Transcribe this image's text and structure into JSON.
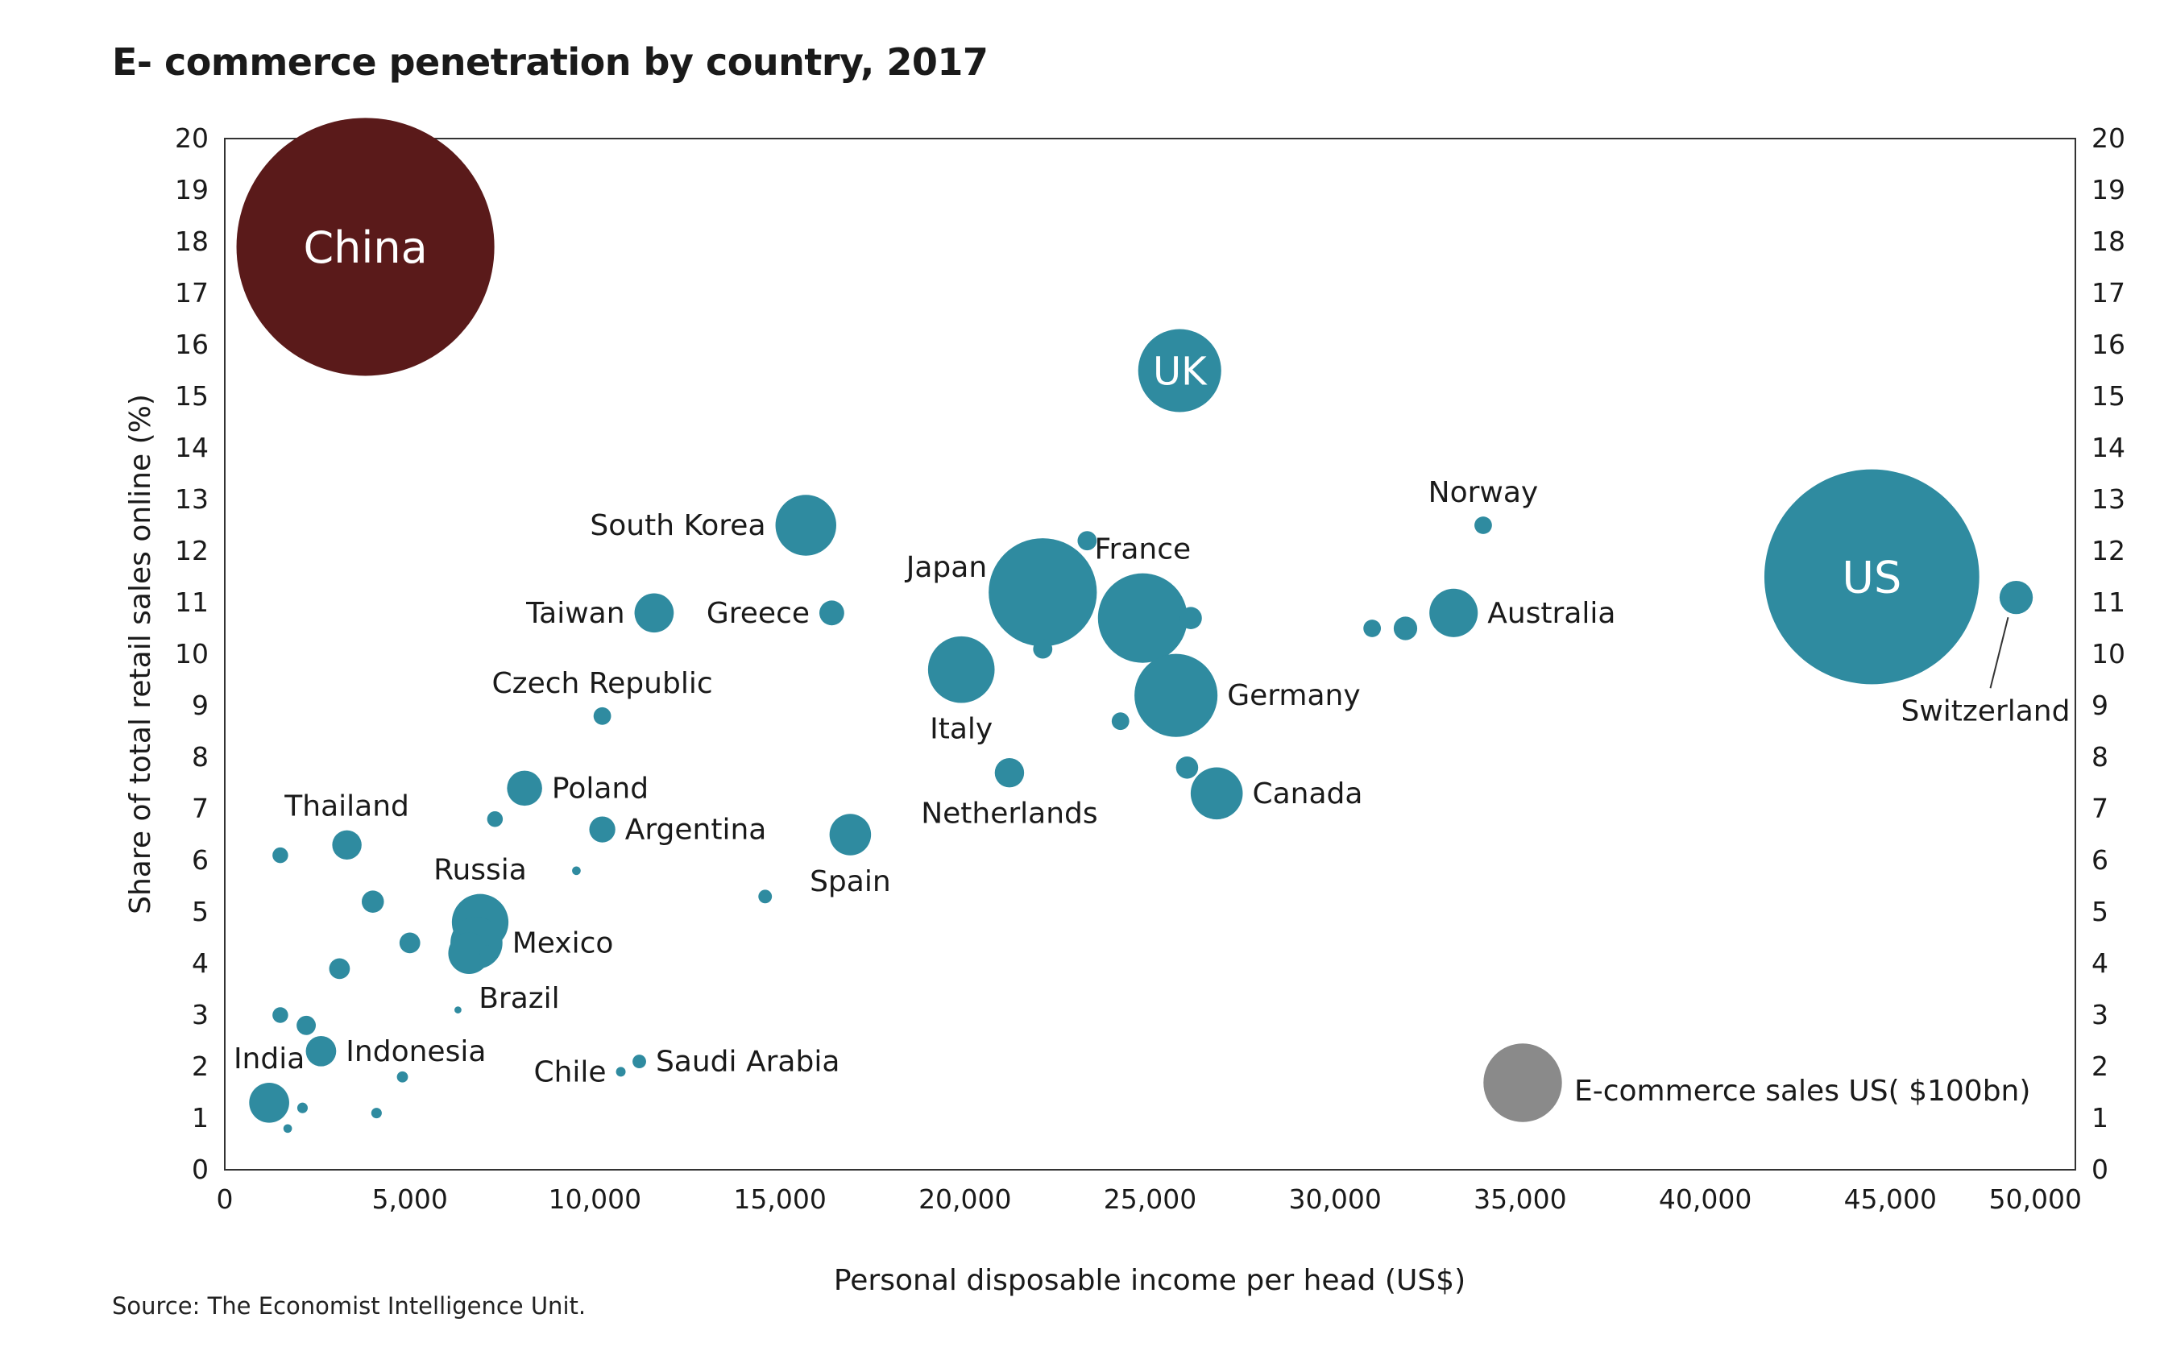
{
  "chart_data": {
    "type": "scatter",
    "subtype": "bubble",
    "title": "E- commerce penetration by country, 2017",
    "xlabel": "Personal disposable income per head (US$)",
    "ylabel": "Share of total retail sales online (%)",
    "xlim": [
      0,
      50000
    ],
    "ylim": [
      0,
      20
    ],
    "xticks": [
      0,
      5000,
      10000,
      15000,
      20000,
      25000,
      30000,
      35000,
      40000,
      45000,
      50000
    ],
    "xtick_labels": [
      "0",
      "5,000",
      "10,000",
      "15,000",
      "20,000",
      "25,000",
      "30,000",
      "35,000",
      "40,000",
      "45,000",
      "50,000"
    ],
    "yticks": [
      0,
      1,
      2,
      3,
      4,
      5,
      6,
      7,
      8,
      9,
      10,
      11,
      12,
      13,
      14,
      15,
      16,
      17,
      18,
      19,
      20
    ],
    "ytick_labels": [
      "0",
      "1",
      "2",
      "3",
      "4",
      "5",
      "6",
      "7",
      "8",
      "9",
      "10",
      "11",
      "12",
      "13",
      "14",
      "15",
      "16",
      "17",
      "18",
      "19",
      "20"
    ],
    "grid": false,
    "size_unit": "E-commerce sales, US$ bn",
    "colors": {
      "china": "#5a1a1a",
      "other": "#2f8ba0",
      "legend": "#8a8a8a",
      "axis": "#333333"
    },
    "legend": {
      "label": "E-commerce sales US( $100bn)",
      "size_value": 100,
      "position": "bottom-right"
    },
    "points": [
      {
        "name": "China",
        "x": 3800,
        "y": 17.9,
        "size": 1080,
        "label_inside": true,
        "highlight": true
      },
      {
        "name": "UK",
        "x": 25800,
        "y": 15.5,
        "size": 112,
        "label_inside": true
      },
      {
        "name": "US",
        "x": 44500,
        "y": 11.5,
        "size": 750,
        "label_inside": true
      },
      {
        "name": "South Korea",
        "x": 15700,
        "y": 12.5,
        "size": 60,
        "label": "South Korea",
        "label_pos": "left"
      },
      {
        "name": "Taiwan",
        "x": 11600,
        "y": 10.8,
        "size": 25,
        "label": "Taiwan",
        "label_pos": "left"
      },
      {
        "name": "Greece",
        "x": 16400,
        "y": 10.8,
        "size": 10,
        "label": "Greece",
        "label_pos": "left"
      },
      {
        "name": "Japan",
        "x": 22100,
        "y": 11.2,
        "size": 190,
        "label": "Japan",
        "label_pos": "upper-left"
      },
      {
        "name": "France",
        "x": 24800,
        "y": 10.7,
        "size": 130,
        "label": "France",
        "label_pos": "above"
      },
      {
        "name": "Norway",
        "x": 34000,
        "y": 12.5,
        "size": 5,
        "label": "Norway",
        "label_pos": "above"
      },
      {
        "name": "Australia",
        "x": 33200,
        "y": 10.8,
        "size": 38,
        "label": "Australia",
        "label_pos": "right"
      },
      {
        "name": "Switzerland",
        "x": 48400,
        "y": 11.1,
        "size": 18,
        "label": "Switzerland",
        "label_pos": "below"
      },
      {
        "name": "Czech Republic",
        "x": 10200,
        "y": 8.8,
        "size": 5,
        "label": "Czech Republic",
        "label_pos": "above"
      },
      {
        "name": "Italy",
        "x": 19900,
        "y": 9.7,
        "size": 72,
        "label": "Italy",
        "label_pos": "below"
      },
      {
        "name": "Germany",
        "x": 25700,
        "y": 9.2,
        "size": 112,
        "label": "Germany",
        "label_pos": "right"
      },
      {
        "name": "Netherlands",
        "x": 21200,
        "y": 7.7,
        "size": 14,
        "label": "Netherlands",
        "label_pos": "below"
      },
      {
        "name": "Canada",
        "x": 26800,
        "y": 7.3,
        "size": 44,
        "label": "Canada",
        "label_pos": "right"
      },
      {
        "name": "Poland",
        "x": 8100,
        "y": 7.4,
        "size": 20,
        "label": "Poland",
        "label_pos": "right"
      },
      {
        "name": "Thailand",
        "x": 3300,
        "y": 6.3,
        "size": 14,
        "label": "Thailand",
        "label_pos": "above"
      },
      {
        "name": "Argentina",
        "x": 10200,
        "y": 6.6,
        "size": 11,
        "label": "Argentina",
        "label_pos": "right"
      },
      {
        "name": "Spain",
        "x": 16900,
        "y": 6.5,
        "size": 28,
        "label": "Spain",
        "label_pos": "below"
      },
      {
        "name": "Russia",
        "x": 6900,
        "y": 4.8,
        "size": 52,
        "label": "Russia",
        "label_pos": "above"
      },
      {
        "name": "Mexico",
        "x": 6800,
        "y": 4.4,
        "size": 44,
        "label": "Mexico",
        "label_pos": "right"
      },
      {
        "name": "Brazil",
        "x": 6600,
        "y": 4.2,
        "size": 28,
        "label": "Brazil",
        "label_pos": "lower-right"
      },
      {
        "name": "Indonesia",
        "x": 2600,
        "y": 2.3,
        "size": 15,
        "label": "Indonesia",
        "label_pos": "right"
      },
      {
        "name": "India",
        "x": 1200,
        "y": 1.3,
        "size": 26,
        "label": "India",
        "label_pos": "above"
      },
      {
        "name": "Chile",
        "x": 10700,
        "y": 1.9,
        "size": 1.5,
        "label": "Chile",
        "label_pos": "left"
      },
      {
        "name": "Saudi Arabia",
        "x": 11200,
        "y": 2.1,
        "size": 3,
        "label": "Saudi Arabia",
        "label_pos": "right"
      },
      {
        "name": "",
        "x": 23300,
        "y": 12.2,
        "size": 6
      },
      {
        "name": "",
        "x": 22100,
        "y": 10.1,
        "size": 6
      },
      {
        "name": "",
        "x": 26100,
        "y": 10.7,
        "size": 8
      },
      {
        "name": "",
        "x": 24200,
        "y": 8.7,
        "size": 5
      },
      {
        "name": "",
        "x": 26000,
        "y": 7.8,
        "size": 8
      },
      {
        "name": "",
        "x": 31000,
        "y": 10.5,
        "size": 5
      },
      {
        "name": "",
        "x": 31900,
        "y": 10.5,
        "size": 9
      },
      {
        "name": "",
        "x": 1500,
        "y": 6.1,
        "size": 4
      },
      {
        "name": "",
        "x": 7300,
        "y": 6.8,
        "size": 4
      },
      {
        "name": "",
        "x": 9500,
        "y": 5.8,
        "size": 1.2
      },
      {
        "name": "",
        "x": 14600,
        "y": 5.3,
        "size": 3
      },
      {
        "name": "",
        "x": 4000,
        "y": 5.2,
        "size": 8
      },
      {
        "name": "",
        "x": 5000,
        "y": 4.4,
        "size": 7
      },
      {
        "name": "",
        "x": 3100,
        "y": 3.9,
        "size": 7
      },
      {
        "name": "",
        "x": 7100,
        "y": 4.2,
        "size": 4
      },
      {
        "name": "",
        "x": 6300,
        "y": 3.1,
        "size": 0.8
      },
      {
        "name": "",
        "x": 1500,
        "y": 3.0,
        "size": 4
      },
      {
        "name": "",
        "x": 2200,
        "y": 2.8,
        "size": 6
      },
      {
        "name": "",
        "x": 4800,
        "y": 1.8,
        "size": 2
      },
      {
        "name": "",
        "x": 2100,
        "y": 1.2,
        "size": 1.8
      },
      {
        "name": "",
        "x": 4100,
        "y": 1.1,
        "size": 1.8
      },
      {
        "name": "",
        "x": 1700,
        "y": 0.8,
        "size": 1.2
      }
    ]
  },
  "source": "Source: The Economist Intelligence Unit."
}
